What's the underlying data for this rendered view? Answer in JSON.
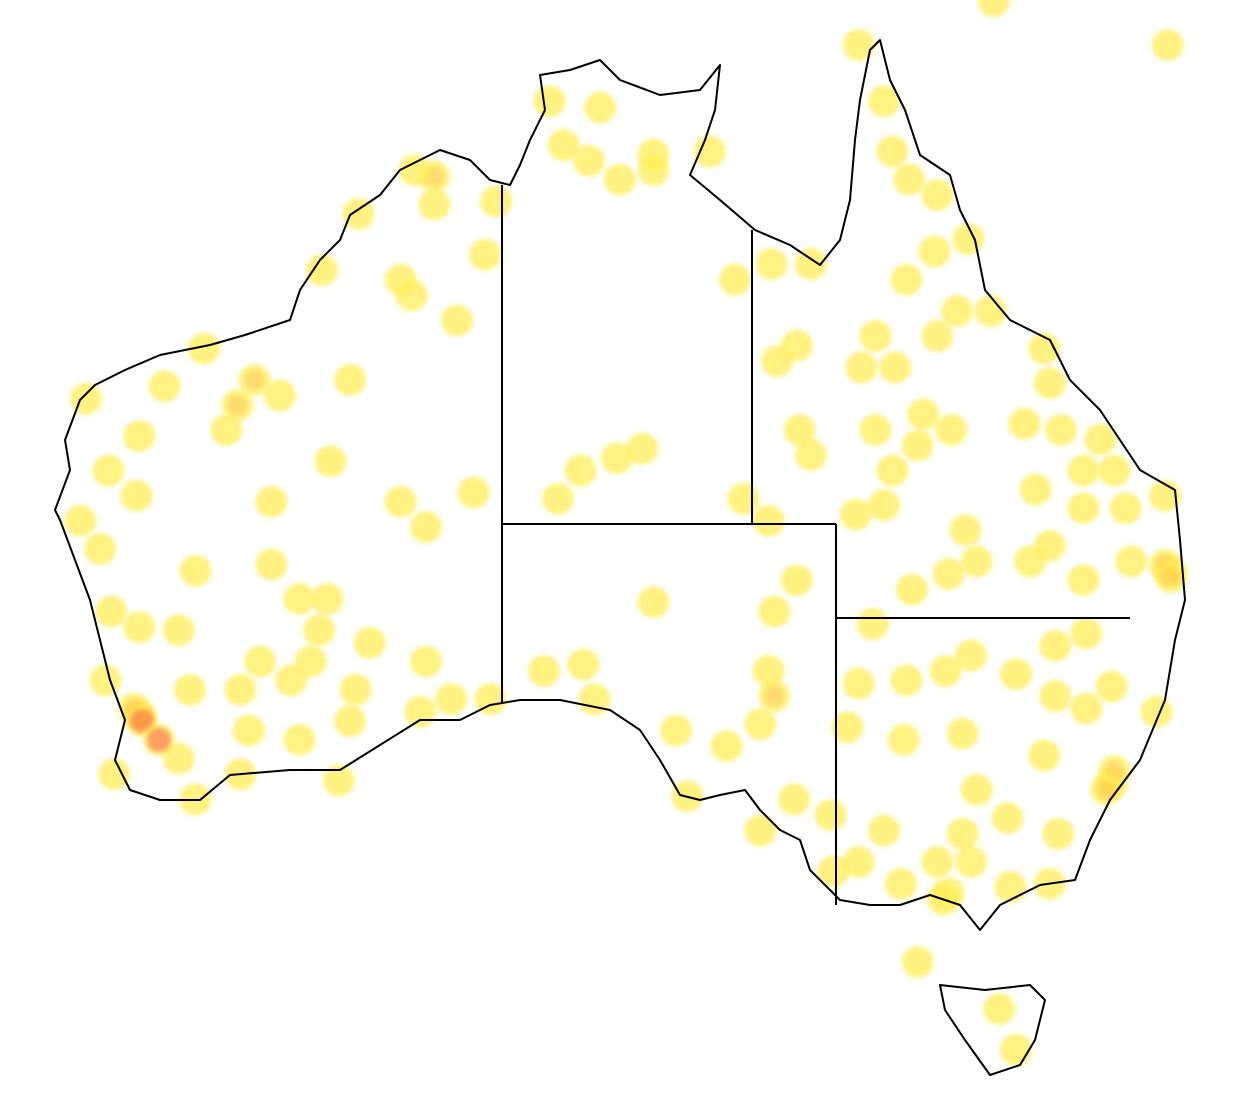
{
  "map": {
    "region": "Australia",
    "projection": "equirectangular",
    "colors": {
      "low_density": "#ffee55",
      "mid_density": "#ffb347",
      "high_density": "#ff3b3b",
      "coastline": "#000000",
      "background": "#ffffff"
    },
    "points": [
      [
        141.8,
        -10.7
      ],
      [
        146.6,
        -9.3
      ],
      [
        152.8,
        -10.7
      ],
      [
        142.7,
        -12.5
      ],
      [
        143.0,
        -14.1
      ],
      [
        143.6,
        -15.0
      ],
      [
        144.6,
        -15.5
      ],
      [
        144.5,
        -17.3
      ],
      [
        145.7,
        -16.9
      ],
      [
        143.5,
        -18.2
      ],
      [
        145.3,
        -19.2
      ],
      [
        146.5,
        -19.2
      ],
      [
        144.6,
        -20.0
      ],
      [
        142.4,
        -20.0
      ],
      [
        141.9,
        -21.0
      ],
      [
        143.1,
        -21.0
      ],
      [
        139.6,
        -20.3
      ],
      [
        138.9,
        -20.8
      ],
      [
        137.4,
        -18.2
      ],
      [
        138.7,
        -17.7
      ],
      [
        140.1,
        -17.7
      ],
      [
        148.4,
        -20.4
      ],
      [
        148.6,
        -21.5
      ],
      [
        147.7,
        -22.8
      ],
      [
        149.0,
        -23.0
      ],
      [
        150.4,
        -23.3
      ],
      [
        150.9,
        -24.3
      ],
      [
        149.8,
        -24.3
      ],
      [
        148.1,
        -24.9
      ],
      [
        149.8,
        -25.5
      ],
      [
        151.3,
        -25.5
      ],
      [
        152.7,
        -25.1
      ],
      [
        152.9,
        -27.5
      ],
      [
        152.7,
        -27.3
      ],
      [
        152.9,
        -27.7
      ],
      [
        151.5,
        -27.2
      ],
      [
        149.8,
        -27.8
      ],
      [
        148.6,
        -26.7
      ],
      [
        147.9,
        -27.2
      ],
      [
        145.6,
        -26.2
      ],
      [
        146.0,
        -27.2
      ],
      [
        145.0,
        -27.6
      ],
      [
        143.7,
        -28.1
      ],
      [
        142.7,
        -25.4
      ],
      [
        141.7,
        -25.7
      ],
      [
        139.7,
        -23.0
      ],
      [
        140.1,
        -23.8
      ],
      [
        142.4,
        -23.0
      ],
      [
        144.1,
        -22.5
      ],
      [
        145.1,
        -23.0
      ],
      [
        143.9,
        -23.5
      ],
      [
        143.0,
        -24.3
      ],
      [
        137.7,
        -25.2
      ],
      [
        138.6,
        -25.9
      ],
      [
        139.6,
        -27.8
      ],
      [
        130.8,
        -12.5
      ],
      [
        132.6,
        -12.7
      ],
      [
        131.3,
        -13.9
      ],
      [
        132.2,
        -14.4
      ],
      [
        133.3,
        -15.0
      ],
      [
        134.5,
        -14.2
      ],
      [
        134.5,
        -14.7
      ],
      [
        136.5,
        -14.1
      ],
      [
        134.1,
        -23.6
      ],
      [
        133.2,
        -23.9
      ],
      [
        131.9,
        -24.3
      ],
      [
        131.1,
        -25.2
      ],
      [
        128.9,
        -15.7
      ],
      [
        128.5,
        -17.4
      ],
      [
        126.7,
        -14.9
      ],
      [
        126.7,
        -15.8
      ],
      [
        126.0,
        -14.7
      ],
      [
        124.0,
        -16.1
      ],
      [
        122.7,
        -17.9
      ],
      [
        125.5,
        -18.2
      ],
      [
        125.9,
        -18.7
      ],
      [
        127.5,
        -19.5
      ],
      [
        123.7,
        -21.4
      ],
      [
        118.5,
        -20.4
      ],
      [
        117.1,
        -21.6
      ],
      [
        120.3,
        -21.4
      ],
      [
        121.2,
        -21.9
      ],
      [
        119.7,
        -22.2
      ],
      [
        119.3,
        -23.0
      ],
      [
        114.3,
        -22.0
      ],
      [
        116.2,
        -23.2
      ],
      [
        115.1,
        -24.3
      ],
      [
        116.1,
        -25.1
      ],
      [
        114.1,
        -25.9
      ],
      [
        114.8,
        -26.8
      ],
      [
        123.0,
        -24.0
      ],
      [
        120.9,
        -25.3
      ],
      [
        125.5,
        -25.3
      ],
      [
        126.4,
        -26.1
      ],
      [
        128.1,
        -25.0
      ],
      [
        118.2,
        -27.5
      ],
      [
        120.9,
        -27.3
      ],
      [
        121.9,
        -28.4
      ],
      [
        122.9,
        -28.4
      ],
      [
        115.2,
        -28.8
      ],
      [
        116.2,
        -29.3
      ],
      [
        117.6,
        -29.4
      ],
      [
        122.6,
        -29.4
      ],
      [
        124.4,
        -29.8
      ],
      [
        126.4,
        -30.4
      ],
      [
        120.5,
        -30.4
      ],
      [
        122.3,
        -30.4
      ],
      [
        116.2,
        -32.1
      ],
      [
        116.0,
        -31.9
      ],
      [
        116.3,
        -32.3
      ],
      [
        118.0,
        -31.3
      ],
      [
        119.8,
        -31.3
      ],
      [
        121.6,
        -31.0
      ],
      [
        123.9,
        -31.3
      ],
      [
        120.1,
        -32.6
      ],
      [
        121.9,
        -32.9
      ],
      [
        123.7,
        -32.3
      ],
      [
        115.3,
        -34.0
      ],
      [
        117.6,
        -33.5
      ],
      [
        118.2,
        -34.8
      ],
      [
        119.8,
        -34.0
      ],
      [
        123.3,
        -34.2
      ],
      [
        126.2,
        -32.0
      ],
      [
        127.3,
        -31.6
      ],
      [
        128.7,
        -31.6
      ],
      [
        116.9,
        -32.9
      ],
      [
        115.0,
        -31.0
      ],
      [
        130.6,
        -30.7
      ],
      [
        132.0,
        -30.5
      ],
      [
        132.4,
        -31.6
      ],
      [
        134.5,
        -28.5
      ],
      [
        135.3,
        -32.6
      ],
      [
        135.7,
        -34.7
      ],
      [
        137.1,
        -33.1
      ],
      [
        138.3,
        -32.4
      ],
      [
        138.6,
        -30.7
      ],
      [
        138.8,
        -28.8
      ],
      [
        138.8,
        -31.5
      ],
      [
        138.3,
        -35.8
      ],
      [
        139.5,
        -34.8
      ],
      [
        140.8,
        -35.3
      ],
      [
        140.9,
        -37.1
      ],
      [
        141.4,
        -32.5
      ],
      [
        142.3,
        -29.2
      ],
      [
        141.8,
        -31.1
      ],
      [
        143.5,
        -31.0
      ],
      [
        144.9,
        -30.7
      ],
      [
        145.8,
        -30.2
      ],
      [
        147.4,
        -30.8
      ],
      [
        148.8,
        -29.9
      ],
      [
        149.9,
        -29.5
      ],
      [
        150.8,
        -31.2
      ],
      [
        152.4,
        -32.0
      ],
      [
        148.8,
        -31.5
      ],
      [
        149.9,
        -31.9
      ],
      [
        145.5,
        -32.7
      ],
      [
        143.4,
        -32.9
      ],
      [
        148.4,
        -33.4
      ],
      [
        150.8,
        -34.3
      ],
      [
        150.9,
        -33.9
      ],
      [
        150.6,
        -34.5
      ],
      [
        146.0,
        -34.5
      ],
      [
        147.1,
        -35.4
      ],
      [
        148.9,
        -35.9
      ],
      [
        142.7,
        -35.8
      ],
      [
        141.8,
        -36.8
      ],
      [
        144.6,
        -36.8
      ],
      [
        144.8,
        -38.0
      ],
      [
        145.0,
        -37.8
      ],
      [
        143.3,
        -37.5
      ],
      [
        145.8,
        -36.8
      ],
      [
        147.2,
        -37.6
      ],
      [
        148.6,
        -37.5
      ],
      [
        145.5,
        -35.9
      ],
      [
        143.9,
        -40.0
      ],
      [
        146.8,
        -41.5
      ],
      [
        147.4,
        -42.8
      ]
    ]
  }
}
